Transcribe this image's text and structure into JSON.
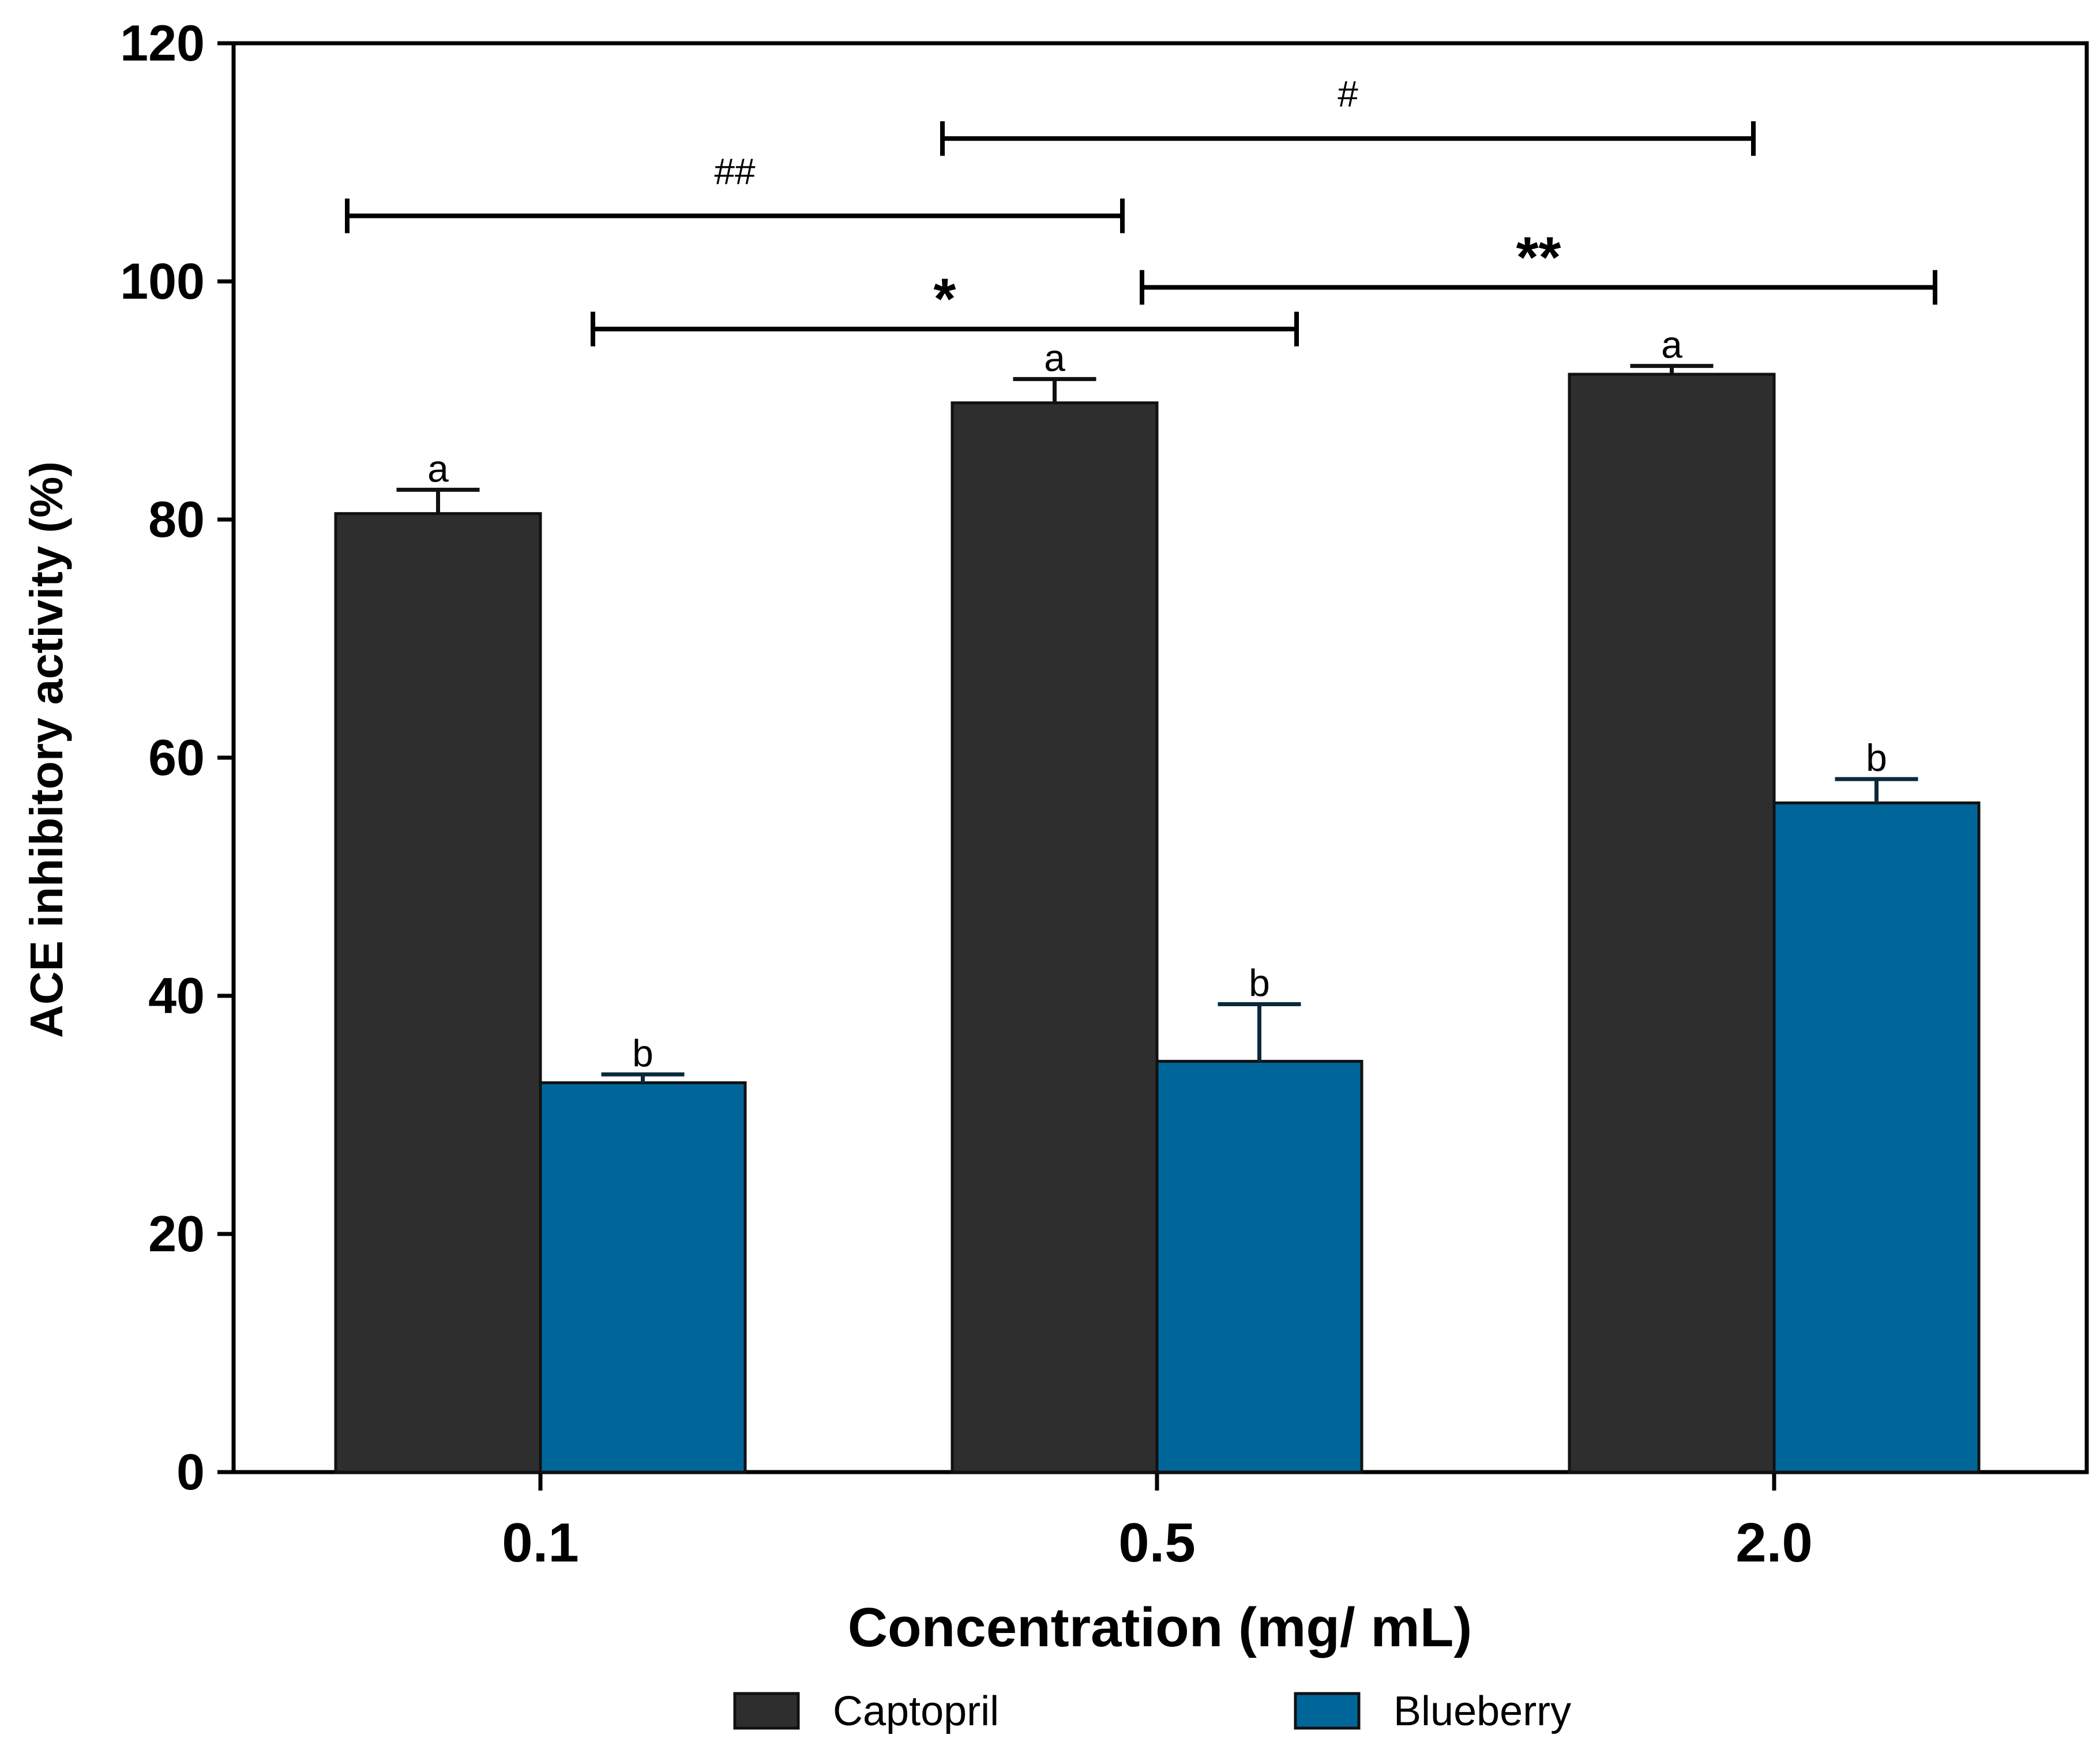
{
  "chart_data": {
    "type": "bar",
    "title": "",
    "xlabel": "Concentration (mg/ mL)",
    "ylabel": "ACE inhibitory activity (%)",
    "ylim": [
      0,
      120
    ],
    "yticks": [
      "0",
      "20",
      "40",
      "60",
      "80",
      "100",
      "120"
    ],
    "categories": [
      "0.1",
      "0.5",
      "2.0"
    ],
    "series": [
      {
        "name": "Captopril",
        "color": "#2e2e2e",
        "values": [
          80.5,
          89.8,
          92.2
        ],
        "errors": [
          2.0,
          2.0,
          0.7
        ],
        "letters": [
          "a",
          "a",
          "a"
        ]
      },
      {
        "name": "Blueberry",
        "color": "#006699",
        "values": [
          32.7,
          34.5,
          56.2
        ],
        "errors": [
          0.7,
          4.8,
          2.0
        ],
        "letters": [
          "b",
          "b",
          "b"
        ]
      }
    ],
    "brackets": [
      {
        "label": "##",
        "from": "0.1-left",
        "to": "0.5-center",
        "y": 105.5,
        "style": "hash"
      },
      {
        "label": "#",
        "from": "0.5-mid",
        "to": "2.0-center",
        "y": 112.0,
        "style": "hash"
      },
      {
        "label": "*",
        "from": "0.1-right",
        "to": "0.5-right",
        "y": 96.0,
        "style": "star"
      },
      {
        "label": "**",
        "from": "0.5-center",
        "to": "2.0-right",
        "y": 99.5,
        "style": "star"
      }
    ],
    "legend": {
      "position": "bottom-center",
      "entries": [
        "Captopril",
        "Blueberry"
      ]
    },
    "grid": false
  }
}
